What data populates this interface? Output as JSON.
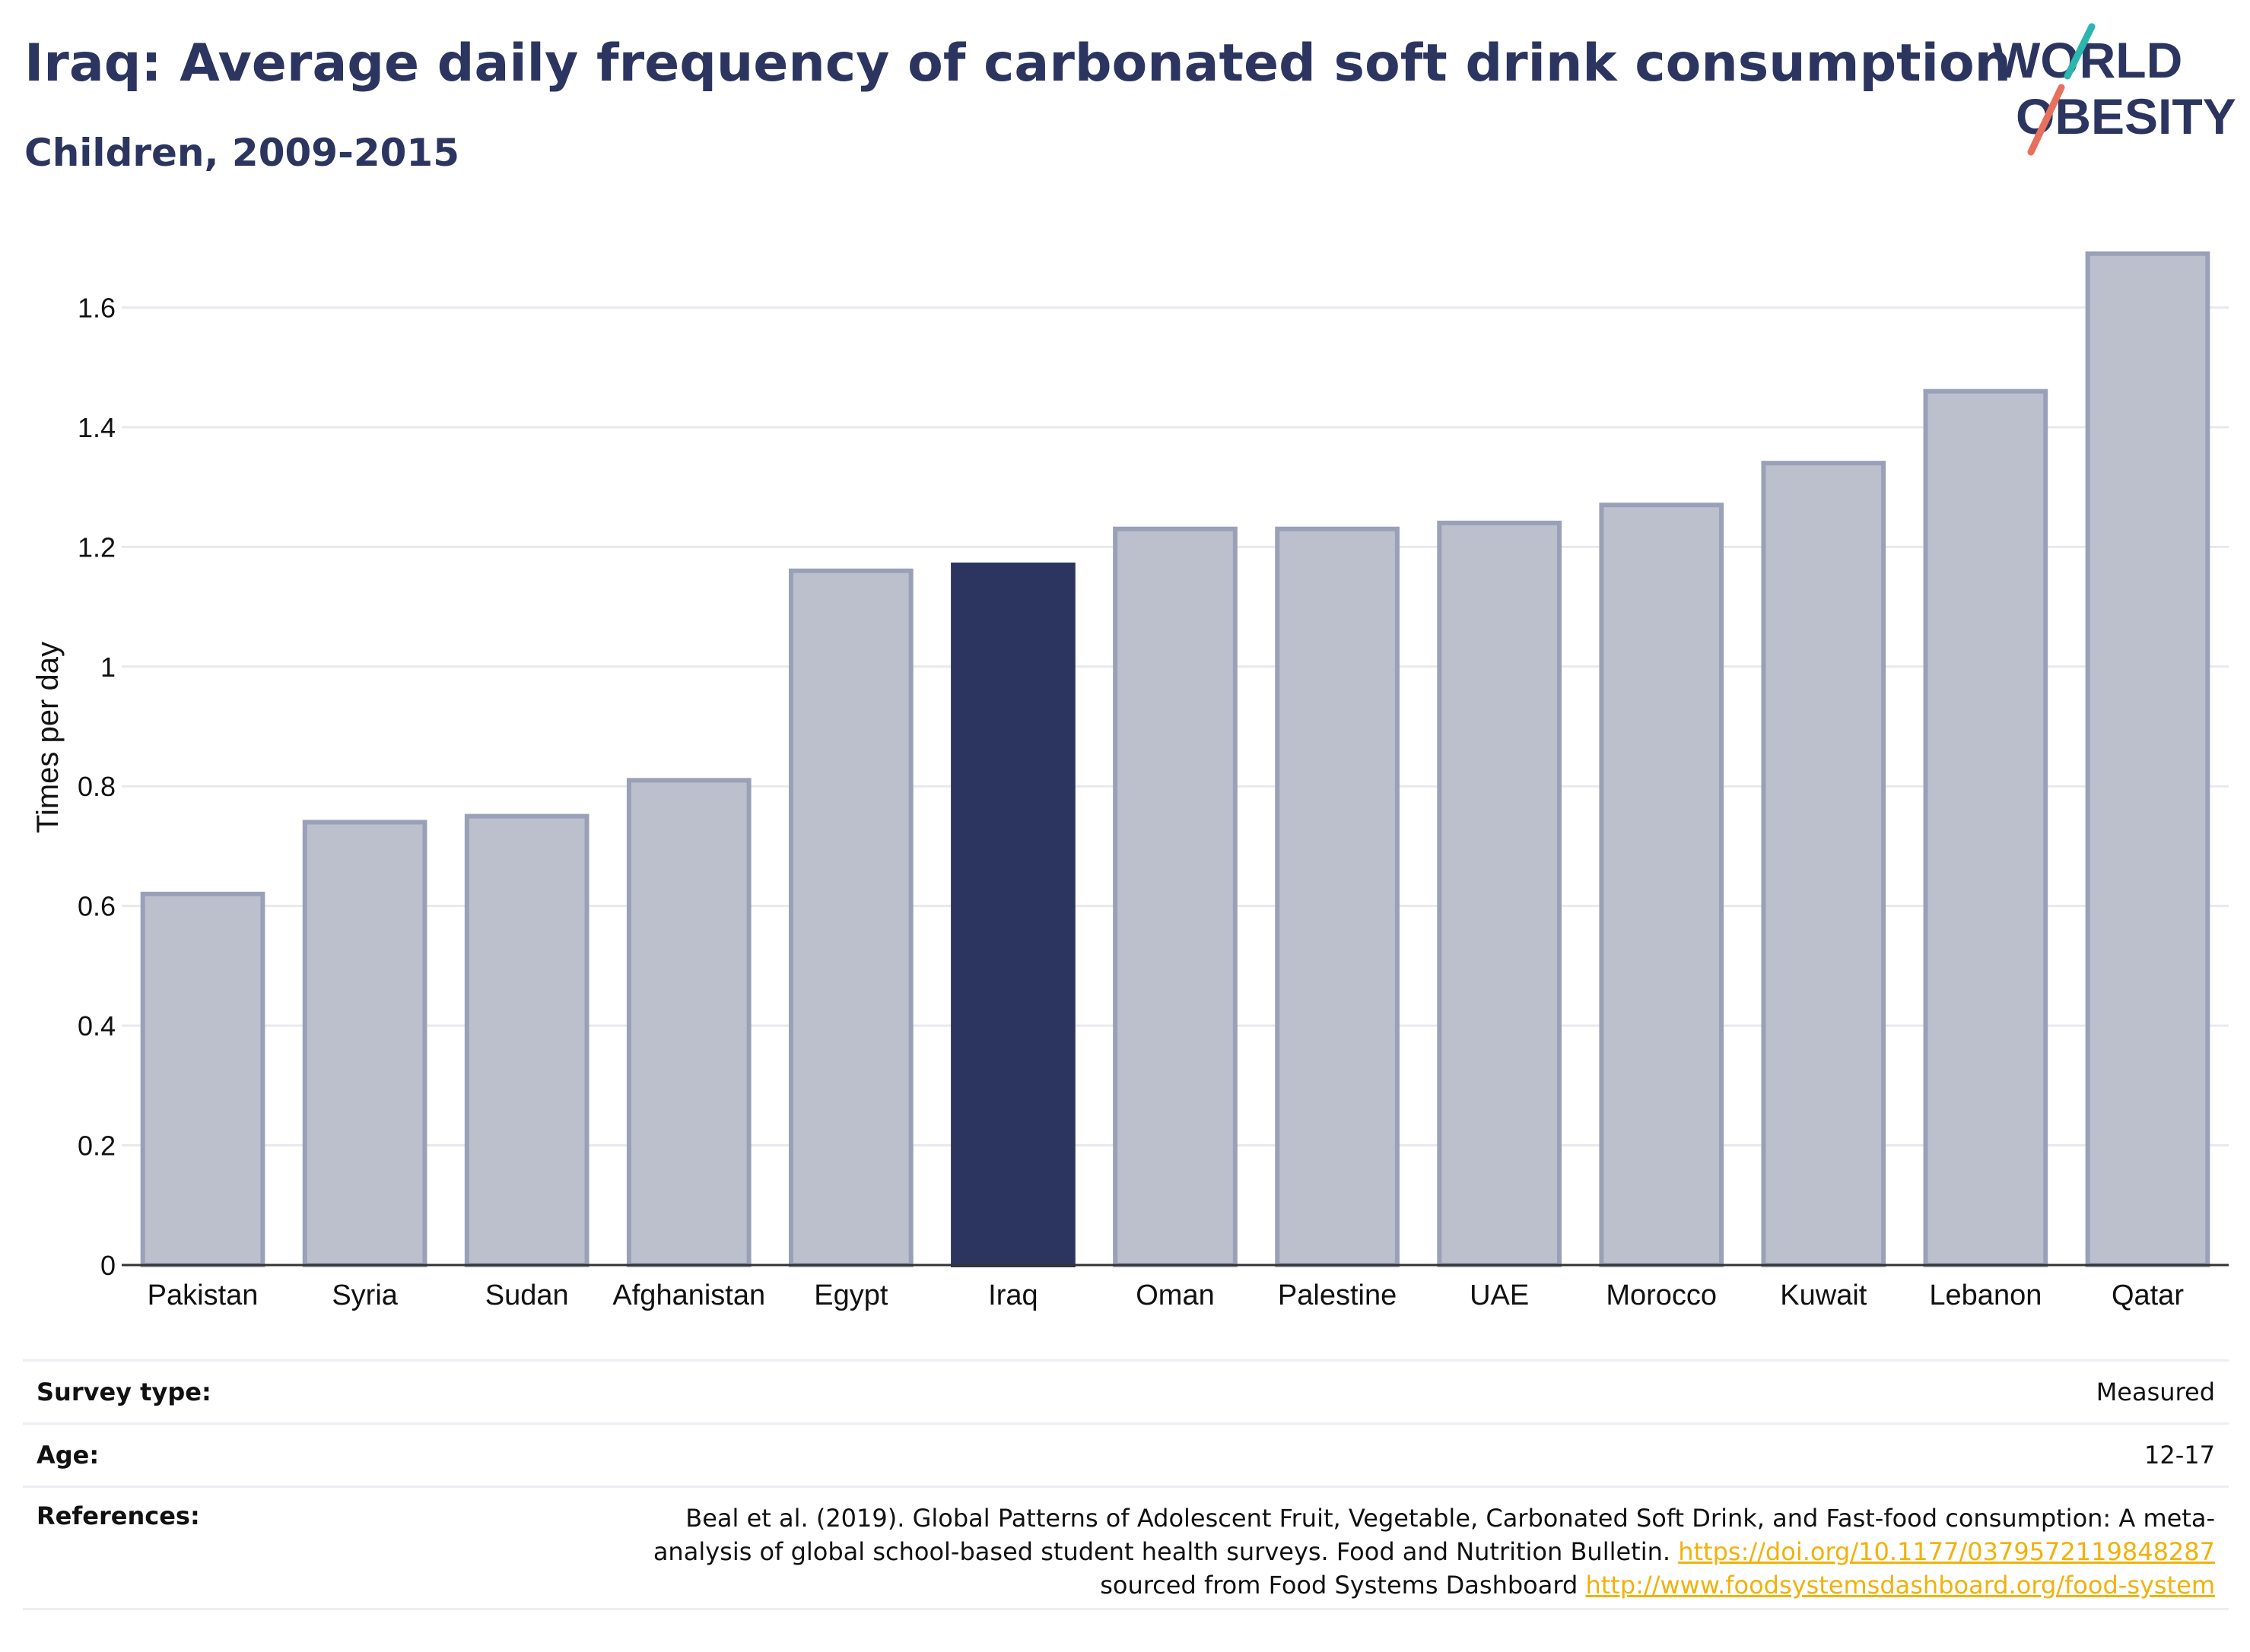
{
  "header": {
    "title": "Iraq: Average daily frequency of carbonated soft drink consumption",
    "subtitle": "Children, 2009-2015"
  },
  "logo": {
    "line1": "WORLD",
    "line2": "OBESITY"
  },
  "colors": {
    "highlight": "#2b3560",
    "bar": "#bcc0cd",
    "bar_edge": "#9aa0b8",
    "grid": "#e8e9ef",
    "link": "#f2b10b"
  },
  "chart_data": {
    "type": "bar",
    "categories": [
      "Pakistan",
      "Syria",
      "Sudan",
      "Afghanistan",
      "Egypt",
      "Iraq",
      "Oman",
      "Palestine",
      "UAE",
      "Morocco",
      "Kuwait",
      "Lebanon",
      "Qatar"
    ],
    "values": [
      0.62,
      0.74,
      0.75,
      0.81,
      1.16,
      1.17,
      1.23,
      1.23,
      1.24,
      1.27,
      1.34,
      1.46,
      1.69
    ],
    "highlight": "Iraq",
    "ylabel": "Times per day",
    "yticks": [
      0,
      0.2,
      0.4,
      0.6,
      0.8,
      1,
      1.2,
      1.4,
      1.6
    ],
    "ytick_labels": [
      "0",
      "0.2",
      "0.4",
      "0.6",
      "0.8",
      "1",
      "1.2",
      "1.4",
      "1.6"
    ],
    "ylim": [
      0,
      1.72
    ],
    "grid": true,
    "legend": "none"
  },
  "info": {
    "survey_label": "Survey type:",
    "survey_value": "Measured",
    "age_label": "Age:",
    "age_value": "12-17",
    "references_label": "References:",
    "ref_text_1": "Beal et al. (2019). Global Patterns of Adolescent Fruit, Vegetable, Carbonated Soft Drink, and Fast-food consumption: A meta-analysis of global school-based student health surveys. Food and Nutrition Bulletin. ",
    "ref_link_1": "https://doi.org/10.1177/0379572119848287",
    "ref_text_2": " sourced from Food Systems Dashboard ",
    "ref_link_2": "http://www.foodsystemsdashboard.org/food-system"
  }
}
